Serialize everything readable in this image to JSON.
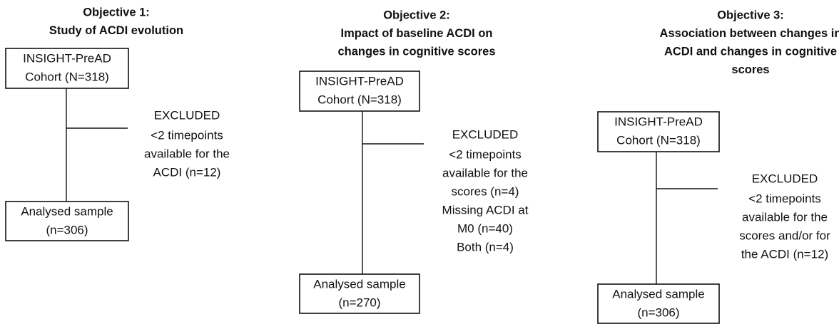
{
  "objectives": [
    {
      "title": [
        "Objective 1:",
        "Study of ACDI evolution"
      ],
      "cohort": [
        "INSIGHT-PreAD",
        "Cohort (N=318)"
      ],
      "excluded": [
        "EXCLUDED",
        "<2 timepoints",
        "available for the",
        "ACDI (n=12)"
      ],
      "sample": [
        "Analysed sample",
        "(n=306)"
      ]
    },
    {
      "title": [
        "Objective 2:",
        "Impact of baseline ACDI on",
        "changes in cognitive scores"
      ],
      "cohort": [
        "INSIGHT-PreAD",
        "Cohort (N=318)"
      ],
      "excluded": [
        "EXCLUDED",
        "<2 timepoints",
        "available for the",
        "scores (n=4)",
        "Missing ACDI at",
        "M0 (n=40)",
        "Both (n=4)"
      ],
      "sample": [
        "Analysed sample",
        "(n=270)"
      ]
    },
    {
      "title": [
        "Objective 3:",
        "Association between changes in",
        "ACDI and changes in cognitive",
        "scores"
      ],
      "cohort": [
        "INSIGHT-PreAD",
        "Cohort (N=318)"
      ],
      "excluded": [
        "EXCLUDED",
        "<2 timepoints",
        "available for the",
        "scores and/or for",
        "the ACDI (n=12)"
      ],
      "sample": [
        "Analysed sample",
        "(n=306)"
      ]
    }
  ]
}
